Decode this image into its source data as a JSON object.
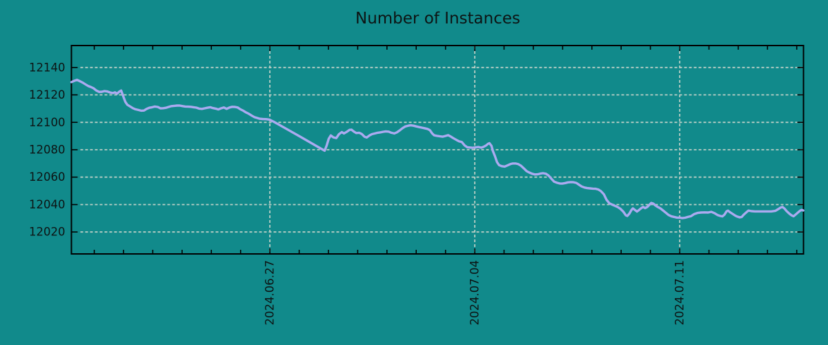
{
  "title": "Number of Instances",
  "colors": {
    "background": "#118a8b",
    "axis": "#000000",
    "grid": "#bbcfc6",
    "line": "#abaaf0",
    "text": "#0d1414"
  },
  "chart_data": {
    "type": "line",
    "title": "Number of Instances",
    "xlabel": "",
    "ylabel": "",
    "grid": true,
    "legend": false,
    "x_unit": "days relative to 2024-06-27",
    "x_tick_labels": [
      "2024.06.27",
      "2024.07.04",
      "2024.07.11"
    ],
    "x_tick_positions": [
      0,
      7,
      14
    ],
    "x_minor_tick_step_days": 1,
    "xlim": [
      -6.78,
      18.23
    ],
    "y_ticks": [
      12020,
      12040,
      12060,
      12080,
      12100,
      12120,
      12140
    ],
    "ylim": [
      12004,
      12156
    ],
    "series": [
      {
        "name": "instances",
        "points": [
          [
            -6.78,
            12129.3
          ],
          [
            -6.68,
            12130.3
          ],
          [
            -6.59,
            12131.0
          ],
          [
            -6.49,
            12130.0
          ],
          [
            -6.4,
            12129.0
          ],
          [
            -6.31,
            12127.8
          ],
          [
            -6.21,
            12126.5
          ],
          [
            -6.12,
            12125.8
          ],
          [
            -6.02,
            12124.8
          ],
          [
            -5.93,
            12123.2
          ],
          [
            -5.83,
            12122.2
          ],
          [
            -5.74,
            12122.3
          ],
          [
            -5.65,
            12122.8
          ],
          [
            -5.55,
            12122.5
          ],
          [
            -5.46,
            12121.8
          ],
          [
            -5.36,
            12121.3
          ],
          [
            -5.29,
            12121.9
          ],
          [
            -5.22,
            12120.9
          ],
          [
            -5.15,
            12122.3
          ],
          [
            -5.08,
            12123.2
          ],
          [
            -5.01,
            12119.0
          ],
          [
            -4.94,
            12115.0
          ],
          [
            -4.87,
            12112.8
          ],
          [
            -4.77,
            12111.5
          ],
          [
            -4.68,
            12110.3
          ],
          [
            -4.59,
            12109.5
          ],
          [
            -4.49,
            12109.0
          ],
          [
            -4.4,
            12108.5
          ],
          [
            -4.3,
            12108.6
          ],
          [
            -4.21,
            12109.8
          ],
          [
            -4.12,
            12110.6
          ],
          [
            -4.02,
            12111.0
          ],
          [
            -3.93,
            12111.5
          ],
          [
            -3.83,
            12111.2
          ],
          [
            -3.74,
            12110.2
          ],
          [
            -3.64,
            12110.3
          ],
          [
            -3.55,
            12110.6
          ],
          [
            -3.46,
            12111.2
          ],
          [
            -3.36,
            12111.8
          ],
          [
            -3.27,
            12112.0
          ],
          [
            -3.17,
            12112.2
          ],
          [
            -3.08,
            12112.2
          ],
          [
            -2.98,
            12111.8
          ],
          [
            -2.89,
            12111.5
          ],
          [
            -2.8,
            12111.4
          ],
          [
            -2.7,
            12111.3
          ],
          [
            -2.61,
            12111.0
          ],
          [
            -2.51,
            12110.7
          ],
          [
            -2.42,
            12110.0
          ],
          [
            -2.32,
            12109.8
          ],
          [
            -2.23,
            12110.2
          ],
          [
            -2.14,
            12110.6
          ],
          [
            -2.04,
            12111.0
          ],
          [
            -1.95,
            12110.4
          ],
          [
            -1.85,
            12110.0
          ],
          [
            -1.76,
            12109.4
          ],
          [
            -1.67,
            12110.2
          ],
          [
            -1.57,
            12110.8
          ],
          [
            -1.48,
            12109.8
          ],
          [
            -1.38,
            12110.8
          ],
          [
            -1.29,
            12111.3
          ],
          [
            -1.19,
            12111.2
          ],
          [
            -1.1,
            12110.8
          ],
          [
            -1.01,
            12109.5
          ],
          [
            -0.91,
            12108.5
          ],
          [
            -0.82,
            12107.3
          ],
          [
            -0.72,
            12106.2
          ],
          [
            -0.63,
            12105.0
          ],
          [
            -0.53,
            12103.8
          ],
          [
            -0.44,
            12103.2
          ],
          [
            -0.35,
            12102.6
          ],
          [
            -0.25,
            12102.4
          ],
          [
            -0.13,
            12102.3
          ],
          [
            -0.02,
            12102.0
          ],
          [
            0.12,
            12100.6
          ],
          [
            0.5,
            12096.0
          ],
          [
            1.07,
            12089.1
          ],
          [
            1.63,
            12082.2
          ],
          [
            1.87,
            12079.3
          ],
          [
            1.94,
            12083.0
          ],
          [
            2.01,
            12088.0
          ],
          [
            2.08,
            12090.4
          ],
          [
            2.17,
            12089.0
          ],
          [
            2.27,
            12088.5
          ],
          [
            2.36,
            12091.3
          ],
          [
            2.46,
            12092.9
          ],
          [
            2.53,
            12091.9
          ],
          [
            2.62,
            12093.0
          ],
          [
            2.72,
            12094.5
          ],
          [
            2.79,
            12094.6
          ],
          [
            2.86,
            12093.4
          ],
          [
            2.95,
            12092.2
          ],
          [
            3.05,
            12092.4
          ],
          [
            3.14,
            12091.5
          ],
          [
            3.23,
            12089.5
          ],
          [
            3.31,
            12088.9
          ],
          [
            3.4,
            12090.4
          ],
          [
            3.49,
            12091.4
          ],
          [
            3.59,
            12091.9
          ],
          [
            3.68,
            12092.4
          ],
          [
            3.78,
            12092.7
          ],
          [
            3.87,
            12093.1
          ],
          [
            3.96,
            12093.4
          ],
          [
            4.06,
            12093.2
          ],
          [
            4.15,
            12092.4
          ],
          [
            4.25,
            12091.9
          ],
          [
            4.34,
            12092.7
          ],
          [
            4.44,
            12094.2
          ],
          [
            4.53,
            12095.7
          ],
          [
            4.62,
            12096.9
          ],
          [
            4.72,
            12097.5
          ],
          [
            4.81,
            12097.8
          ],
          [
            4.91,
            12097.5
          ],
          [
            5.0,
            12097.0
          ],
          [
            5.1,
            12096.5
          ],
          [
            5.19,
            12096.1
          ],
          [
            5.28,
            12095.7
          ],
          [
            5.38,
            12095.2
          ],
          [
            5.47,
            12094.2
          ],
          [
            5.54,
            12092.0
          ],
          [
            5.61,
            12090.5
          ],
          [
            5.71,
            12090.1
          ],
          [
            5.8,
            12089.8
          ],
          [
            5.9,
            12089.5
          ],
          [
            5.99,
            12090.0
          ],
          [
            6.09,
            12090.6
          ],
          [
            6.18,
            12089.6
          ],
          [
            6.27,
            12088.4
          ],
          [
            6.37,
            12087.2
          ],
          [
            6.46,
            12086.2
          ],
          [
            6.56,
            12085.6
          ],
          [
            6.65,
            12083.2
          ],
          [
            6.74,
            12081.8
          ],
          [
            6.84,
            12081.6
          ],
          [
            6.93,
            12081.4
          ],
          [
            7.03,
            12081.7
          ],
          [
            7.12,
            12082.0
          ],
          [
            7.22,
            12081.5
          ],
          [
            7.29,
            12082.0
          ],
          [
            7.38,
            12083.0
          ],
          [
            7.45,
            12084.3
          ],
          [
            7.5,
            12084.8
          ],
          [
            7.57,
            12082.8
          ],
          [
            7.62,
            12079.0
          ],
          [
            7.69,
            12075.2
          ],
          [
            7.76,
            12071.0
          ],
          [
            7.83,
            12068.8
          ],
          [
            7.92,
            12068.0
          ],
          [
            8.02,
            12067.7
          ],
          [
            8.11,
            12068.5
          ],
          [
            8.21,
            12069.5
          ],
          [
            8.3,
            12070.0
          ],
          [
            8.39,
            12070.0
          ],
          [
            8.49,
            12069.5
          ],
          [
            8.58,
            12068.3
          ],
          [
            8.68,
            12066.3
          ],
          [
            8.77,
            12064.4
          ],
          [
            8.86,
            12063.4
          ],
          [
            8.96,
            12062.5
          ],
          [
            9.05,
            12062.0
          ],
          [
            9.15,
            12062.1
          ],
          [
            9.24,
            12062.6
          ],
          [
            9.33,
            12062.9
          ],
          [
            9.43,
            12062.5
          ],
          [
            9.52,
            12061.2
          ],
          [
            9.62,
            12058.8
          ],
          [
            9.71,
            12056.7
          ],
          [
            9.81,
            12055.9
          ],
          [
            9.9,
            12055.4
          ],
          [
            9.99,
            12055.3
          ],
          [
            10.09,
            12055.7
          ],
          [
            10.18,
            12056.2
          ],
          [
            10.28,
            12056.4
          ],
          [
            10.37,
            12056.3
          ],
          [
            10.47,
            12055.8
          ],
          [
            10.56,
            12054.5
          ],
          [
            10.65,
            12053.2
          ],
          [
            10.75,
            12052.4
          ],
          [
            10.84,
            12052.0
          ],
          [
            10.94,
            12051.8
          ],
          [
            11.03,
            12051.6
          ],
          [
            11.13,
            12051.5
          ],
          [
            11.22,
            12051.0
          ],
          [
            11.31,
            12049.8
          ],
          [
            11.41,
            12047.5
          ],
          [
            11.5,
            12043.5
          ],
          [
            11.6,
            12040.9
          ],
          [
            11.69,
            12040.0
          ],
          [
            11.79,
            12039.1
          ],
          [
            11.88,
            12038.2
          ],
          [
            11.97,
            12037.0
          ],
          [
            12.07,
            12034.9
          ],
          [
            12.16,
            12032.2
          ],
          [
            12.21,
            12031.7
          ],
          [
            12.28,
            12033.4
          ],
          [
            12.35,
            12036.0
          ],
          [
            12.4,
            12037.2
          ],
          [
            12.47,
            12036.1
          ],
          [
            12.54,
            12034.9
          ],
          [
            12.61,
            12036.0
          ],
          [
            12.68,
            12037.3
          ],
          [
            12.75,
            12038.3
          ],
          [
            12.82,
            12037.4
          ],
          [
            12.89,
            12038.2
          ],
          [
            12.96,
            12039.7
          ],
          [
            13.03,
            12041.2
          ],
          [
            13.1,
            12040.7
          ],
          [
            13.17,
            12039.4
          ],
          [
            13.25,
            12038.3
          ],
          [
            13.34,
            12037.2
          ],
          [
            13.43,
            12035.7
          ],
          [
            13.53,
            12034.0
          ],
          [
            13.62,
            12032.4
          ],
          [
            13.72,
            12031.4
          ],
          [
            13.81,
            12031.0
          ],
          [
            13.9,
            12030.5
          ],
          [
            14.0,
            12030.4
          ],
          [
            14.09,
            12030.1
          ],
          [
            14.19,
            12030.4
          ],
          [
            14.28,
            12031.0
          ],
          [
            14.38,
            12031.5
          ],
          [
            14.49,
            12033.0
          ],
          [
            14.61,
            12033.9
          ],
          [
            14.73,
            12034.2
          ],
          [
            14.85,
            12034.3
          ],
          [
            14.97,
            12034.2
          ],
          [
            15.08,
            12034.7
          ],
          [
            15.2,
            12033.6
          ],
          [
            15.3,
            12032.3
          ],
          [
            15.39,
            12031.7
          ],
          [
            15.46,
            12031.4
          ],
          [
            15.53,
            12032.7
          ],
          [
            15.6,
            12035.0
          ],
          [
            15.65,
            12035.6
          ],
          [
            15.72,
            12034.4
          ],
          [
            15.81,
            12033.2
          ],
          [
            15.88,
            12032.2
          ],
          [
            15.95,
            12031.4
          ],
          [
            16.05,
            12030.7
          ],
          [
            16.12,
            12031.0
          ],
          [
            16.19,
            12032.7
          ],
          [
            16.28,
            12034.4
          ],
          [
            16.35,
            12035.6
          ],
          [
            16.45,
            12035.2
          ],
          [
            16.57,
            12035.0
          ],
          [
            16.85,
            12035.0
          ],
          [
            17.13,
            12035.0
          ],
          [
            17.27,
            12035.4
          ],
          [
            17.37,
            12036.7
          ],
          [
            17.46,
            12037.9
          ],
          [
            17.51,
            12038.2
          ],
          [
            17.58,
            12037.1
          ],
          [
            17.65,
            12035.3
          ],
          [
            17.75,
            12033.3
          ],
          [
            17.82,
            12032.2
          ],
          [
            17.89,
            12031.5
          ],
          [
            17.96,
            12032.7
          ],
          [
            18.05,
            12034.4
          ],
          [
            18.12,
            12035.6
          ],
          [
            18.17,
            12036.1
          ],
          [
            18.22,
            12035.7
          ]
        ]
      }
    ]
  }
}
